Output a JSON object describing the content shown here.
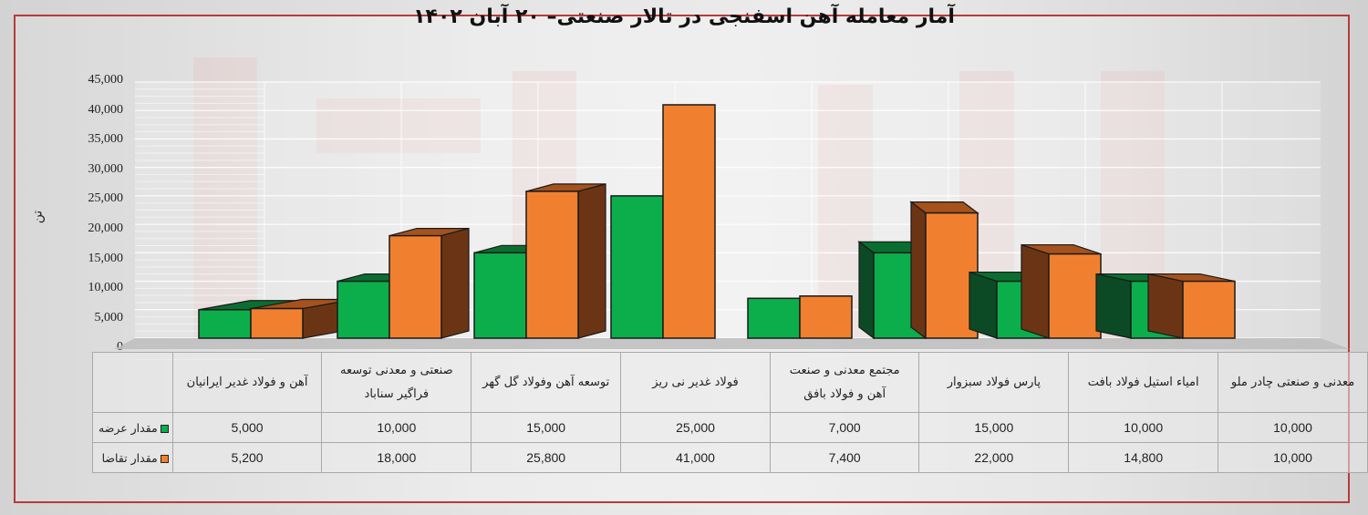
{
  "title": "آمار معامله آهن اسفنجی در تالار صنعتی– ۲۰ آبان ۱۴۰۲",
  "colors": {
    "supply": "#0cae4c",
    "supply_dark": "#0a6e31",
    "supply_side": "#0b4a24",
    "demand": "#f08030",
    "demand_dark": "#a5521c",
    "demand_side": "#6b3515",
    "frame": "#b83a3a"
  },
  "y_axis": {
    "title": "تن",
    "ticks": [
      "45,000",
      "40,000",
      "35,000",
      "30,000",
      "25,000",
      "20,000",
      "15,000",
      "10,000",
      "5,000",
      "0"
    ]
  },
  "legend": {
    "supply": "مقدار عرضه",
    "demand": "مقدار تقاضا"
  },
  "chart_data": {
    "type": "bar",
    "title": "آمار معامله آهن اسفنجی در تالار صنعتی– ۲۰ آبان ۱۴۰۲",
    "xlabel": "",
    "ylabel": "تن",
    "ylim": [
      0,
      45000
    ],
    "grid": true,
    "legend_position": "table-left",
    "categories": [
      "آهن و فولاد غدیر ایرانیان",
      "صنعتی و معدنی توسعه فراگیر سناباد",
      "توسعه آهن وفولاد گل گهر",
      "فولاد غدیر نی ریز",
      "مجتمع معدنی و صنعت آهن و فولاد بافق",
      "پارس فولاد سبزوار",
      "امیاء استیل فولاد بافت",
      "معدنی و صنعتی چادر ملو"
    ],
    "series": [
      {
        "name": "مقدار عرضه",
        "values": [
          5000,
          10000,
          15000,
          25000,
          7000,
          15000,
          10000,
          10000
        ]
      },
      {
        "name": "مقدار تقاضا",
        "values": [
          5200,
          18000,
          25800,
          41000,
          7400,
          22000,
          14800,
          10000
        ]
      }
    ]
  },
  "table": {
    "headers": [
      [
        "آهن و فولاد غدیر ایرانیان"
      ],
      [
        "صنعتی و معدنی توسعه",
        "فراگیر سناباد"
      ],
      [
        "توسعه آهن وفولاد گل گهر"
      ],
      [
        "فولاد غدیر نی ریز"
      ],
      [
        "مجتمع معدنی و صنعت",
        "آهن و فولاد بافق"
      ],
      [
        "پارس فولاد سبزوار"
      ],
      [
        "امیاء استیل فولاد بافت"
      ],
      [
        "معدنی و صنعتی چادر ملو"
      ]
    ],
    "supply_row": [
      "5,000",
      "10,000",
      "15,000",
      "25,000",
      "7,000",
      "15,000",
      "10,000",
      "10,000"
    ],
    "demand_row": [
      "5,200",
      "18,000",
      "25,800",
      "41,000",
      "7,400",
      "22,000",
      "14,800",
      "10,000"
    ]
  }
}
